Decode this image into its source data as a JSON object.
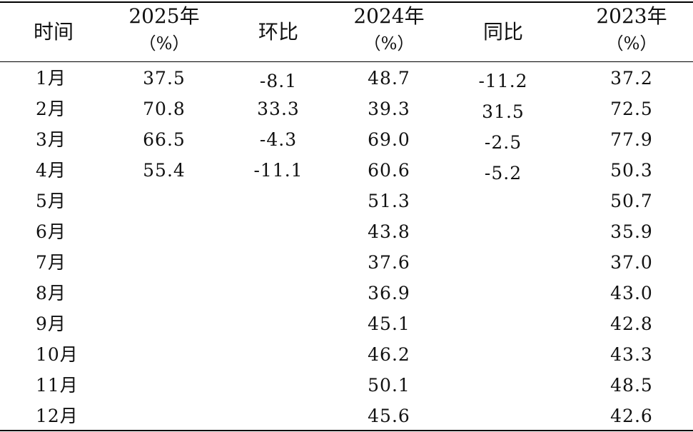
{
  "header": {
    "time": "时间",
    "y2025": "2025年",
    "y2025_unit": "（%）",
    "mom": "环比",
    "y2024": "2024年",
    "y2024_unit": "（%）",
    "yoy": "同比",
    "y2023": "2023年",
    "y2023_unit": "（%）"
  },
  "rows": [
    {
      "month": "1月",
      "y2025": "37.5",
      "mom": "-8.1",
      "y2024": "48.7",
      "yoy": "-11.2",
      "y2023": "37.2"
    },
    {
      "month": "2月",
      "y2025": "70.8",
      "mom": "33.3",
      "y2024": "39.3",
      "yoy": "31.5",
      "y2023": "72.5"
    },
    {
      "month": "3月",
      "y2025": "66.5",
      "mom": "-4.3",
      "y2024": "69.0",
      "yoy": "-2.5",
      "y2023": "77.9"
    },
    {
      "month": "4月",
      "y2025": "55.4",
      "mom": "-11.1",
      "y2024": "60.6",
      "yoy": "-5.2",
      "y2023": "50.3"
    },
    {
      "month": "5月",
      "y2025": "",
      "mom": "",
      "y2024": "51.3",
      "yoy": "",
      "y2023": "50.7"
    },
    {
      "month": "6月",
      "y2025": "",
      "mom": "",
      "y2024": "43.8",
      "yoy": "",
      "y2023": "35.9"
    },
    {
      "month": "7月",
      "y2025": "",
      "mom": "",
      "y2024": "37.6",
      "yoy": "",
      "y2023": "37.0"
    },
    {
      "month": "8月",
      "y2025": "",
      "mom": "",
      "y2024": "36.9",
      "yoy": "",
      "y2023": "43.0"
    },
    {
      "month": "9月",
      "y2025": "",
      "mom": "",
      "y2024": "45.1",
      "yoy": "",
      "y2023": "42.8"
    },
    {
      "month": "10月",
      "y2025": "",
      "mom": "",
      "y2024": "46.2",
      "yoy": "",
      "y2023": "43.3"
    },
    {
      "month": "11月",
      "y2025": "",
      "mom": "",
      "y2024": "50.1",
      "yoy": "",
      "y2023": "48.5"
    },
    {
      "month": "12月",
      "y2025": "",
      "mom": "",
      "y2024": "45.6",
      "yoy": "",
      "y2023": "42.6"
    }
  ]
}
